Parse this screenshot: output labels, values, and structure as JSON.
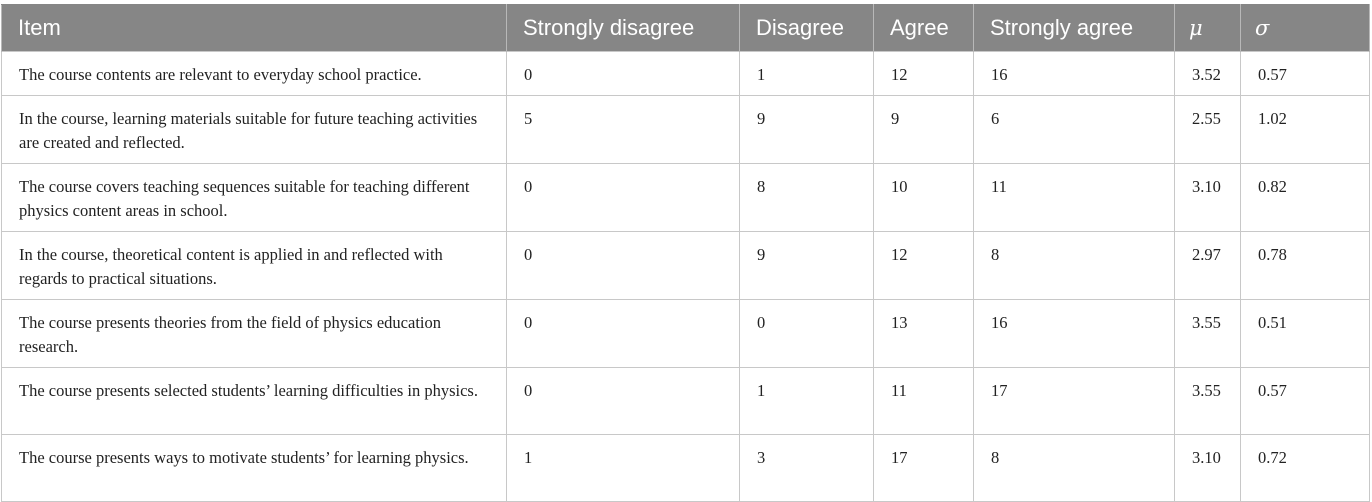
{
  "table": {
    "headers": [
      "Item",
      "Strongly disagree",
      "Disagree",
      "Agree",
      "Strongly agree",
      "μ",
      "σ"
    ],
    "rows": [
      [
        "The course contents are relevant to everyday school practice.",
        "0",
        "1",
        "12",
        "16",
        "3.52",
        "0.57"
      ],
      [
        "In the course, learning materials suitable for future teaching activities are created and reflected.",
        "5",
        "9",
        "9",
        "6",
        "2.55",
        "1.02"
      ],
      [
        "The course covers teaching sequences suitable for teaching different physics content areas in school.",
        "0",
        "8",
        "10",
        "11",
        "3.10",
        "0.82"
      ],
      [
        "In the course, theoretical content is applied in and reflected with regards to practical situations.",
        "0",
        "9",
        "12",
        "8",
        "2.97",
        "0.78"
      ],
      [
        "The course presents theories from the field of physics education research.",
        "0",
        "0",
        "13",
        "16",
        "3.55",
        "0.51"
      ],
      [
        "The course presents selected students’ learning difficulties in physics.",
        "0",
        "1",
        "11",
        "17",
        "3.55",
        "0.57"
      ],
      [
        "The course presents ways to motivate students’ for learning physics.",
        "1",
        "3",
        "17",
        "8",
        "3.10",
        "0.72"
      ]
    ]
  },
  "colors": {
    "header_background": "#868686",
    "header_text": "#ffffff",
    "grid_line": "#c8c8c8"
  }
}
